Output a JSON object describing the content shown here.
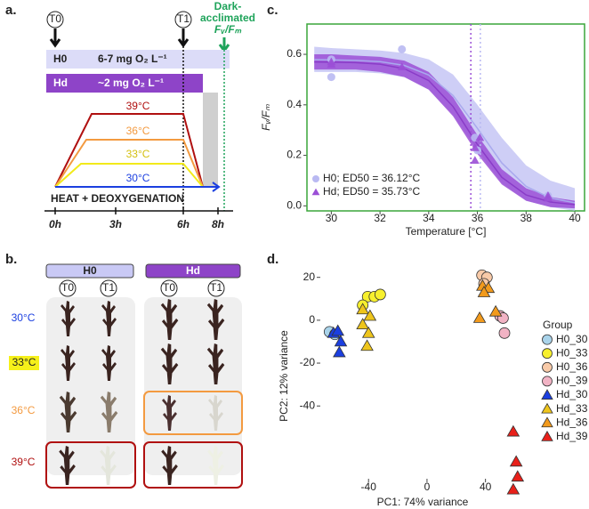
{
  "panel_a": {
    "panel_label": "a.",
    "timepoints": [
      "T0",
      "T1"
    ],
    "dark_label": [
      "Dark-",
      "acclimated",
      "Fᵥ/Fₘ"
    ],
    "treatments": [
      {
        "name": "H0",
        "oxygen": "6-7 mg O₂ L⁻¹"
      },
      {
        "name": "Hd",
        "oxygen": "~2 mg O₂ L⁻¹"
      }
    ],
    "temperatures": [
      "39°C",
      "36°C",
      "33°C",
      "30°C"
    ],
    "process": "HEAT + DEOXYGENATION",
    "time_ticks": [
      "0h",
      "3h",
      "6h",
      "8h"
    ]
  },
  "panel_b": {
    "panel_label": "b.",
    "groups": [
      "H0",
      "Hd"
    ],
    "timepoints": [
      "T0",
      "T1"
    ],
    "temperatures": [
      "30°C",
      "33°C",
      "36°C",
      "39°C"
    ]
  },
  "chart_data": [
    {
      "type": "scatter",
      "panel_label": "c.",
      "x_label": "Temperature [°C]",
      "y_label": "Fᵥ/Fₘ",
      "xlim": [
        29,
        40.4
      ],
      "ylim": [
        -0.02,
        0.72
      ],
      "xticks": [
        30,
        32,
        34,
        36,
        38,
        40
      ],
      "yticks": [
        {
          "value": 0,
          "label": "0.0"
        },
        0.2,
        0.4,
        0.6
      ],
      "border_color": "#3aa63a",
      "legend": "bottom-left",
      "series": [
        {
          "name": "H0; ED50 = 36.12°C",
          "color": "#b9b9f2",
          "marker": "circle",
          "ed50": 36.12,
          "x": [
            30,
            30,
            32.9,
            35.9,
            36,
            38.9
          ],
          "values": [
            0.51,
            0.58,
            0.62,
            0.27,
            0.22,
            0.04
          ],
          "fit": {
            "x": [
              29.3,
              30,
              31,
              32,
              33,
              34,
              35,
              36,
              37,
              38,
              39,
              40
            ],
            "values": [
              0.579,
              0.578,
              0.576,
              0.571,
              0.556,
              0.518,
              0.437,
              0.307,
              0.17,
              0.077,
              0.031,
              0.012
            ],
            "upper": [
              0.63,
              0.625,
              0.62,
              0.615,
              0.605,
              0.58,
              0.52,
              0.4,
              0.27,
              0.16,
              0.1,
              0.07
            ],
            "lower": [
              0.53,
              0.53,
              0.53,
              0.525,
              0.51,
              0.46,
              0.36,
              0.22,
              0.09,
              0.02,
              -0.005,
              -0.02
            ]
          }
        },
        {
          "name": "Hd; ED50 = 35.73°C",
          "color": "#9b4fd6",
          "marker": "triangle",
          "ed50": 35.73,
          "x": [
            30,
            30,
            32.9,
            35.9,
            35.9,
            36.1,
            38.9,
            38.9
          ],
          "values": [
            0.57,
            0.56,
            0.55,
            0.23,
            0.18,
            0.27,
            0.04,
            0.03
          ],
          "fit": {
            "x": [
              29.3,
              30,
              31,
              32,
              33,
              34,
              35,
              36,
              37,
              38,
              39,
              40
            ],
            "values": [
              0.57,
              0.569,
              0.567,
              0.561,
              0.543,
              0.496,
              0.393,
              0.243,
              0.113,
              0.043,
              0.015,
              0.005
            ],
            "upper": [
              0.6,
              0.6,
              0.595,
              0.59,
              0.575,
              0.53,
              0.43,
              0.28,
              0.145,
              0.07,
              0.035,
              0.02
            ],
            "lower": [
              0.54,
              0.54,
              0.54,
              0.53,
              0.51,
              0.46,
              0.355,
              0.205,
              0.085,
              0.02,
              -0.005,
              -0.01
            ]
          }
        }
      ]
    },
    {
      "type": "scatter",
      "panel_label": "d.",
      "x_label": "PC1: 74% variance",
      "y_label": "PC2: 12% variance",
      "xlim": [
        -73,
        67
      ],
      "ylim": [
        -81,
        29
      ],
      "xticks": [
        -40,
        0,
        40
      ],
      "yticks": [
        20,
        0,
        -20,
        -40
      ],
      "legend_title": "Group",
      "legend": "right",
      "series": [
        {
          "name": "H0_30",
          "color": "#a9d3ea",
          "marker": "circle",
          "x": [
            -66.7,
            -63
          ],
          "values": [
            -5.4,
            -6.6
          ]
        },
        {
          "name": "H0_33",
          "color": "#f7f02e",
          "marker": "circle",
          "x": [
            -40.6,
            -36,
            -32,
            -44
          ],
          "values": [
            11,
            11,
            12,
            7
          ]
        },
        {
          "name": "H0_36",
          "color": "#f8caa8",
          "marker": "circle",
          "x": [
            37.6,
            41,
            39
          ],
          "values": [
            21,
            20,
            17
          ]
        },
        {
          "name": "H0_39",
          "color": "#f1b3c4",
          "marker": "circle",
          "x": [
            50,
            52,
            53
          ],
          "values": [
            2,
            1,
            -6
          ]
        },
        {
          "name": "Hd_30",
          "color": "#1b3fe0",
          "marker": "triangle",
          "x": [
            -64,
            -61,
            -59,
            -60
          ],
          "values": [
            -6,
            -5,
            -10,
            -15
          ]
        },
        {
          "name": "Hd_33",
          "color": "#eec51c",
          "marker": "triangle",
          "x": [
            -44,
            -39,
            -44,
            -40,
            -41
          ],
          "values": [
            5,
            2,
            -2,
            -6,
            -12
          ]
        },
        {
          "name": "Hd_36",
          "color": "#f29a1c",
          "marker": "triangle",
          "x": [
            38,
            42,
            39,
            47,
            36
          ],
          "values": [
            16,
            15,
            13,
            4,
            1
          ]
        },
        {
          "name": "Hd_39",
          "color": "#e8201a",
          "marker": "triangle",
          "x": [
            59,
            61,
            62,
            59
          ],
          "values": [
            -52,
            -66,
            -73,
            -79
          ]
        }
      ]
    }
  ]
}
